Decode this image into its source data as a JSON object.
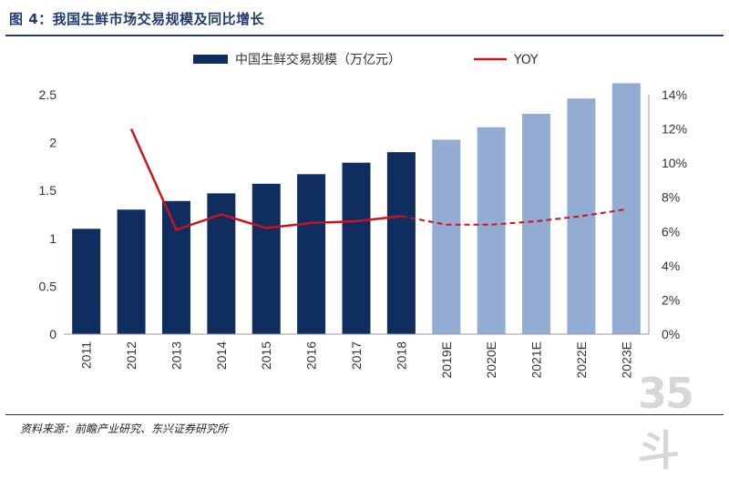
{
  "figure": {
    "title": "图 4：我国生鲜市场交易规模及同比增长",
    "source": "资料来源：前瞻产业研究、东兴证券研究所",
    "watermark": "35斗"
  },
  "colors": {
    "bar_actual": "#0f2d5e",
    "bar_forecast": "#93acd3",
    "line": "#c8161e",
    "axis_text": "#333333",
    "title": "#1f3b70"
  },
  "chart_data": {
    "type": "bar",
    "categories": [
      "2011",
      "2012",
      "2013",
      "2014",
      "2015",
      "2016",
      "2017",
      "2018",
      "2019E",
      "2020E",
      "2021E",
      "2022E",
      "2023E"
    ],
    "forecast_from_index": 8,
    "series": [
      {
        "name": "中国生鲜交易规模（万亿元）",
        "type": "bar",
        "axis": "left",
        "values": [
          1.1,
          1.3,
          1.39,
          1.47,
          1.57,
          1.67,
          1.79,
          1.9,
          2.03,
          2.16,
          2.3,
          2.46,
          2.62
        ]
      },
      {
        "name": "YOY",
        "type": "line",
        "axis": "right",
        "values": [
          null,
          0.12,
          0.061,
          0.07,
          0.062,
          0.065,
          0.066,
          0.069,
          0.064,
          0.064,
          0.066,
          0.069,
          0.073
        ]
      }
    ],
    "left_axis": {
      "ylim": [
        0,
        2.5
      ],
      "ticks": [
        "0",
        "0.5",
        "1",
        "1.5",
        "2",
        "2.5"
      ]
    },
    "right_axis": {
      "ylim": [
        0,
        0.14
      ],
      "ticks": [
        "0%",
        "2%",
        "4%",
        "6%",
        "8%",
        "10%",
        "12%",
        "14%"
      ]
    },
    "legend": {
      "position": "top"
    },
    "grid": false
  }
}
